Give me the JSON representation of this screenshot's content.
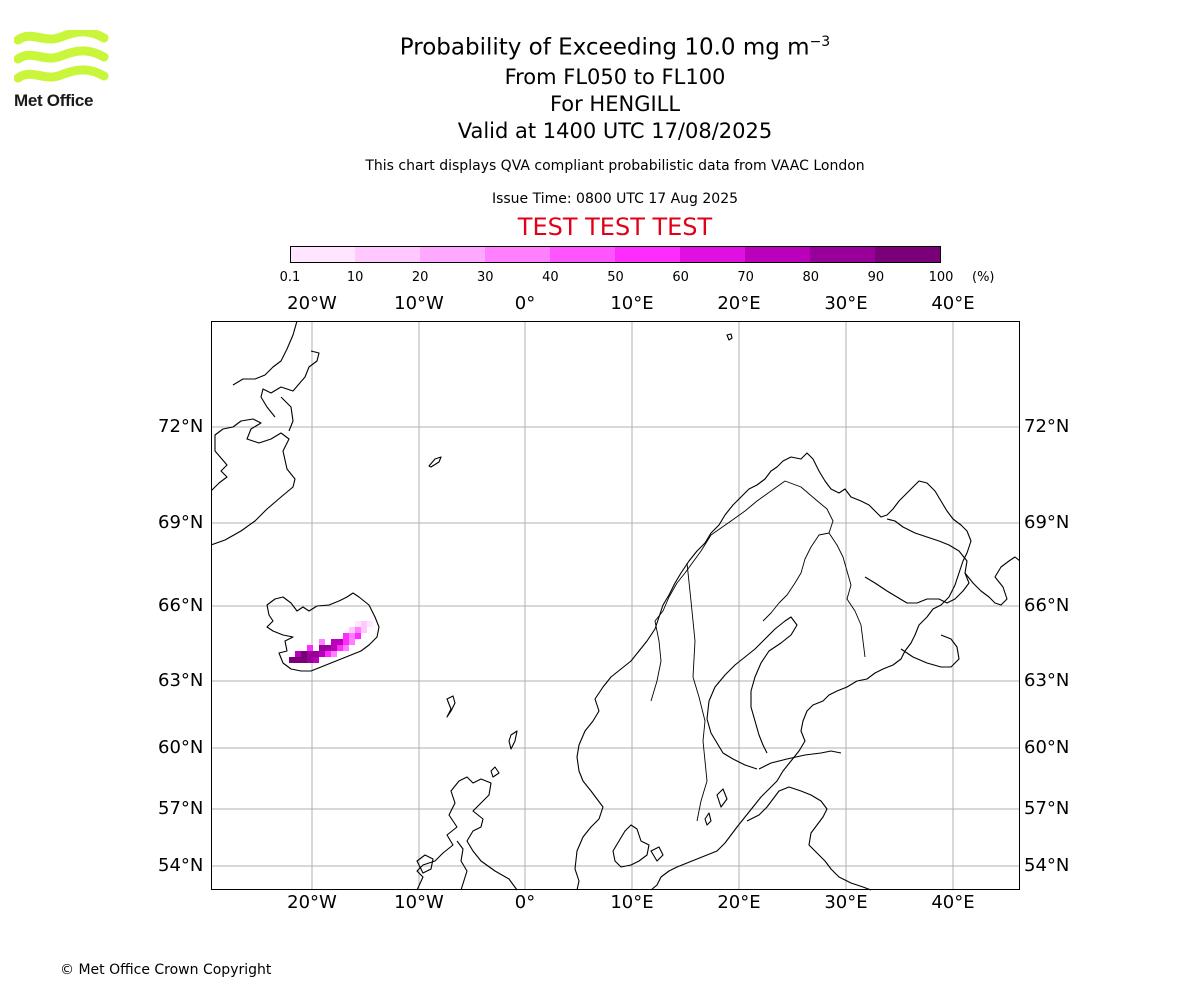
{
  "logo": {
    "text": "Met Office",
    "color": "#c9f53a"
  },
  "title": {
    "line1": "Probability of Exceeding 10.0 mg m",
    "line1_sup": "−3",
    "line2": "From FL050 to FL100",
    "line3": "For HENGILL",
    "line4": "Valid at 1400 UTC 17/08/2025"
  },
  "description": "This chart displays QVA compliant probabilistic data from VAAC London",
  "issue_time": "Issue Time: 0800 UTC 17 Aug 2025",
  "test_banner": "TEST TEST TEST",
  "colorbar": {
    "ticks": [
      "0.1",
      "10",
      "20",
      "30",
      "40",
      "50",
      "60",
      "70",
      "80",
      "90",
      "100"
    ],
    "unit": "(%)",
    "colors": [
      "#ffe5ff",
      "#ffc8ff",
      "#ffa8ff",
      "#ff80ff",
      "#ff55ff",
      "#ff2cff",
      "#e010e0",
      "#bb00bb",
      "#990099",
      "#7a007a"
    ]
  },
  "map": {
    "lon_labels": [
      "20°W",
      "10°W",
      "0°",
      "10°E",
      "20°E",
      "30°E",
      "40°E"
    ],
    "lat_labels": [
      "72°N",
      "69°N",
      "66°N",
      "63°N",
      "60°N",
      "57°N",
      "54°N"
    ],
    "gridline_color": "#b0b0b0",
    "plume_colors": [
      "#ffe5ff",
      "#ffc8ff",
      "#ff80ff",
      "#ff2cff",
      "#bb00bb",
      "#990099",
      "#7a007a"
    ]
  },
  "footer": {
    "copyright": "© Met Office Crown Copyright"
  }
}
